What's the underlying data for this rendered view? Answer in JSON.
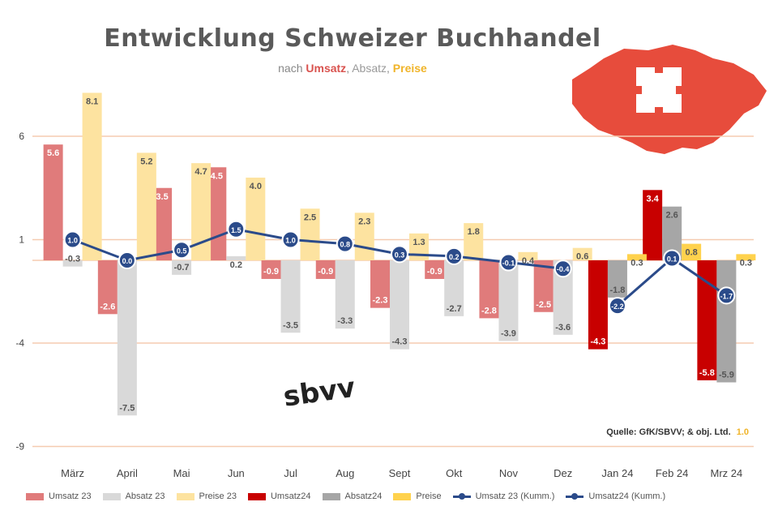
{
  "title": "Entwicklung Schweizer Buchhandel",
  "subtitle": {
    "prefix": "nach",
    "umsatz": "Umsatz",
    "absatz": "Absatz",
    "preise": "Preise"
  },
  "source": "Quelle: GfK/SBVV; & obj. Ltd.",
  "source_note": "1.0",
  "logo": "sbvv",
  "colors": {
    "umsatz23": "#e07b7b",
    "absatz23": "#d9d9d9",
    "preise23": "#fde3a0",
    "umsatz24": "#c80000",
    "absatz24": "#a6a6a6",
    "preise24": "#ffd24d",
    "kum23": "#2b4b8a",
    "kum24": "#2b4b8a",
    "flag": "#e74c3c"
  },
  "chart_data": {
    "type": "bar",
    "categories": [
      "März",
      "April",
      "Mai",
      "Jun",
      "Jul",
      "Aug",
      "Sept",
      "Okt",
      "Nov",
      "Dez",
      "Jan 24",
      "Feb 24",
      "Mrz 24"
    ],
    "yticks": [
      6,
      1,
      -4,
      -9
    ],
    "ylim": [
      -9,
      8
    ],
    "series": [
      {
        "name": "Umsatz 23",
        "key": "umsatz23",
        "values": [
          5.6,
          -2.6,
          3.5,
          4.5,
          -0.9,
          -0.9,
          -2.3,
          -0.9,
          -2.8,
          -2.5,
          null,
          null,
          null
        ]
      },
      {
        "name": "Absatz 23",
        "key": "absatz23",
        "values": [
          -0.3,
          -7.5,
          -0.7,
          0.2,
          -3.5,
          -3.3,
          -4.3,
          -2.7,
          -3.9,
          -3.6,
          null,
          null,
          null
        ]
      },
      {
        "name": "Preise 23",
        "key": "preise23",
        "values": [
          8.1,
          5.2,
          4.7,
          4.0,
          2.5,
          2.3,
          1.3,
          1.8,
          0.4,
          0.6,
          null,
          null,
          null
        ]
      },
      {
        "name": "Umsatz24",
        "key": "umsatz24",
        "values": [
          null,
          null,
          null,
          null,
          null,
          null,
          null,
          null,
          null,
          null,
          -4.3,
          3.4,
          -5.8
        ]
      },
      {
        "name": "Absatz24",
        "key": "absatz24",
        "values": [
          null,
          null,
          null,
          null,
          null,
          null,
          null,
          null,
          null,
          null,
          -1.8,
          2.6,
          -5.9
        ]
      },
      {
        "name": "Preise",
        "key": "preise24",
        "values": [
          null,
          null,
          null,
          null,
          null,
          null,
          null,
          null,
          null,
          null,
          0.3,
          0.8,
          0.3
        ]
      }
    ],
    "labels": {
      "umsatz23": [
        "5.6",
        "-2.6",
        "3.5",
        "4.5",
        "-0.9",
        "-0.9",
        "-2.3",
        "-0.9",
        "-2.8",
        "-2.5",
        "",
        "",
        ""
      ],
      "absatz23": [
        "-0.3",
        "-7.5",
        "-0.7",
        "0.2",
        "-3.5",
        "-3.3",
        "-4.3",
        "-2.7",
        "-3.9",
        "-3.6",
        "",
        "",
        ""
      ],
      "preise23": [
        "8.1",
        "5.2",
        "4.7",
        "4.0",
        "2.5",
        "2.3",
        "1.3",
        "1.8",
        "0.4",
        "0.6",
        "",
        "",
        ""
      ],
      "umsatz24": [
        "",
        "",
        "",
        "",
        "",
        "",
        "",
        "",
        "",
        "",
        "-4.3",
        "3.4",
        "-5.8"
      ],
      "absatz24": [
        "",
        "",
        "",
        "",
        "",
        "",
        "",
        "",
        "",
        "",
        "-1.8",
        "2.6",
        "-5.9"
      ],
      "preise24": [
        "",
        "",
        "",
        "",
        "",
        "",
        "",
        "",
        "",
        "",
        "0.3",
        "0.8",
        "0.3"
      ]
    },
    "lines": [
      {
        "name": "Umsatz 23 (Kumm.)",
        "key": "kum23",
        "values": [
          1.0,
          0.0,
          0.5,
          1.5,
          1.0,
          0.8,
          0.3,
          0.2,
          -0.1,
          -0.4,
          null,
          null,
          null
        ],
        "labels": [
          "1.0",
          "0.0",
          "0.5",
          "1.5",
          "1.0",
          "0.8",
          "0.3",
          "0.2",
          "-0.1",
          "-0.4",
          "",
          "",
          ""
        ]
      },
      {
        "name": "Umsatz24 (Kumm.)",
        "key": "kum24",
        "values": [
          null,
          null,
          null,
          null,
          null,
          null,
          null,
          null,
          null,
          null,
          -2.2,
          0.1,
          -1.7
        ],
        "labels": [
          "",
          "",
          "",
          "",
          "",
          "",
          "",
          "",
          "",
          "",
          "-2.2",
          "0.1",
          "-1.7"
        ]
      }
    ],
    "grid": true,
    "legend_position": "bottom"
  }
}
